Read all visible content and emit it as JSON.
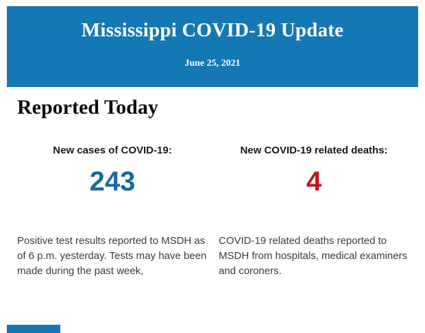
{
  "banner": {
    "title": "Mississippi COVID-19 Update",
    "date": "June 25, 2021",
    "bg_color": "#1478b5",
    "text_color": "#ffffff"
  },
  "section": {
    "heading": "Reported Today"
  },
  "stats": [
    {
      "label": "New cases of COVID-19:",
      "value": "243",
      "value_color": "#1b6a9c",
      "description": "Positive test results reported to MSDH as of 6 p.m. yesterday. Tests may have been made during the past week,"
    },
    {
      "label": "New COVID-19 related deaths:",
      "value": "4",
      "value_color": "#c3161c",
      "description": "COVID-19 related deaths reported to MSDH from hospitals, medical examiners and coroners."
    }
  ]
}
